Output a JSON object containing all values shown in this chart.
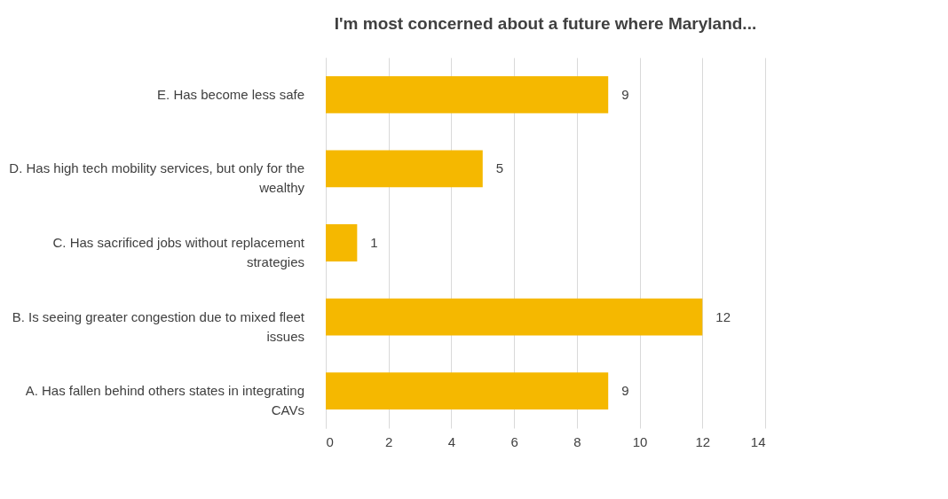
{
  "chart_data": {
    "type": "bar",
    "orientation": "horizontal",
    "title": "I'm most concerned about a future where Maryland...",
    "categories": [
      "E. Has become less safe",
      "D. Has high tech mobility services, but only for the wealthy",
      "C. Has sacrificed jobs without replacement strategies",
      "B. Is seeing greater congestion due to mixed fleet issues",
      "A. Has fallen behind others states in integrating CAVs"
    ],
    "values": [
      9,
      5,
      1,
      12,
      9
    ],
    "color": "#f5b800",
    "xlim": [
      0,
      14
    ],
    "xticks": [
      0,
      2,
      4,
      6,
      8,
      10,
      12,
      14
    ],
    "grid": "x",
    "data_labels": true
  }
}
